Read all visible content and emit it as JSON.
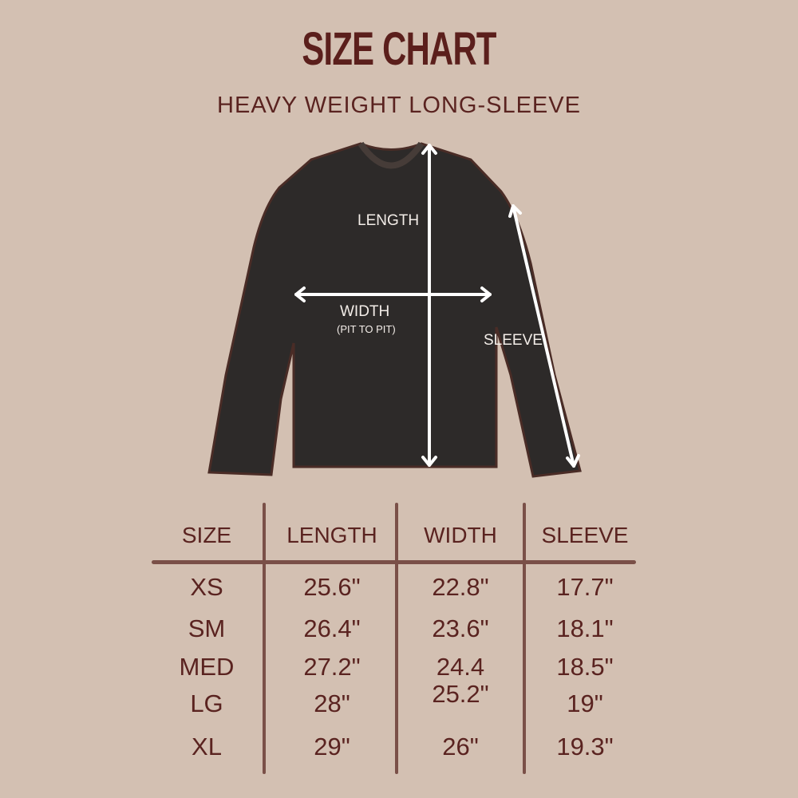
{
  "title": "SIZE CHART",
  "subtitle": "HEAVY WEIGHT LONG-SLEEVE",
  "diagram": {
    "length_label": "LENGTH",
    "width_label": "WIDTH",
    "width_note": "(PIT TO PIT)",
    "sleeve_label": "SLEEVE",
    "garment_color": "#2d2a29"
  },
  "table": {
    "headers": [
      "SIZE",
      "LENGTH",
      "WIDTH",
      "SLEEVE"
    ],
    "rows": [
      [
        "XS",
        "25.6\"",
        "22.8\"",
        "17.7\""
      ],
      [
        "SM",
        "26.4\"",
        "23.6\"",
        "18.1\""
      ],
      [
        "MED",
        "27.2\"",
        "24.4",
        "18.5\""
      ],
      [
        "LG",
        "28\"",
        "25.2\"",
        "19\""
      ],
      [
        "XL",
        "29\"",
        "26\"",
        "19.3\""
      ]
    ]
  },
  "colors": {
    "background": "#d3c0b2",
    "text": "#5a2320",
    "rule": "#7a5048"
  }
}
